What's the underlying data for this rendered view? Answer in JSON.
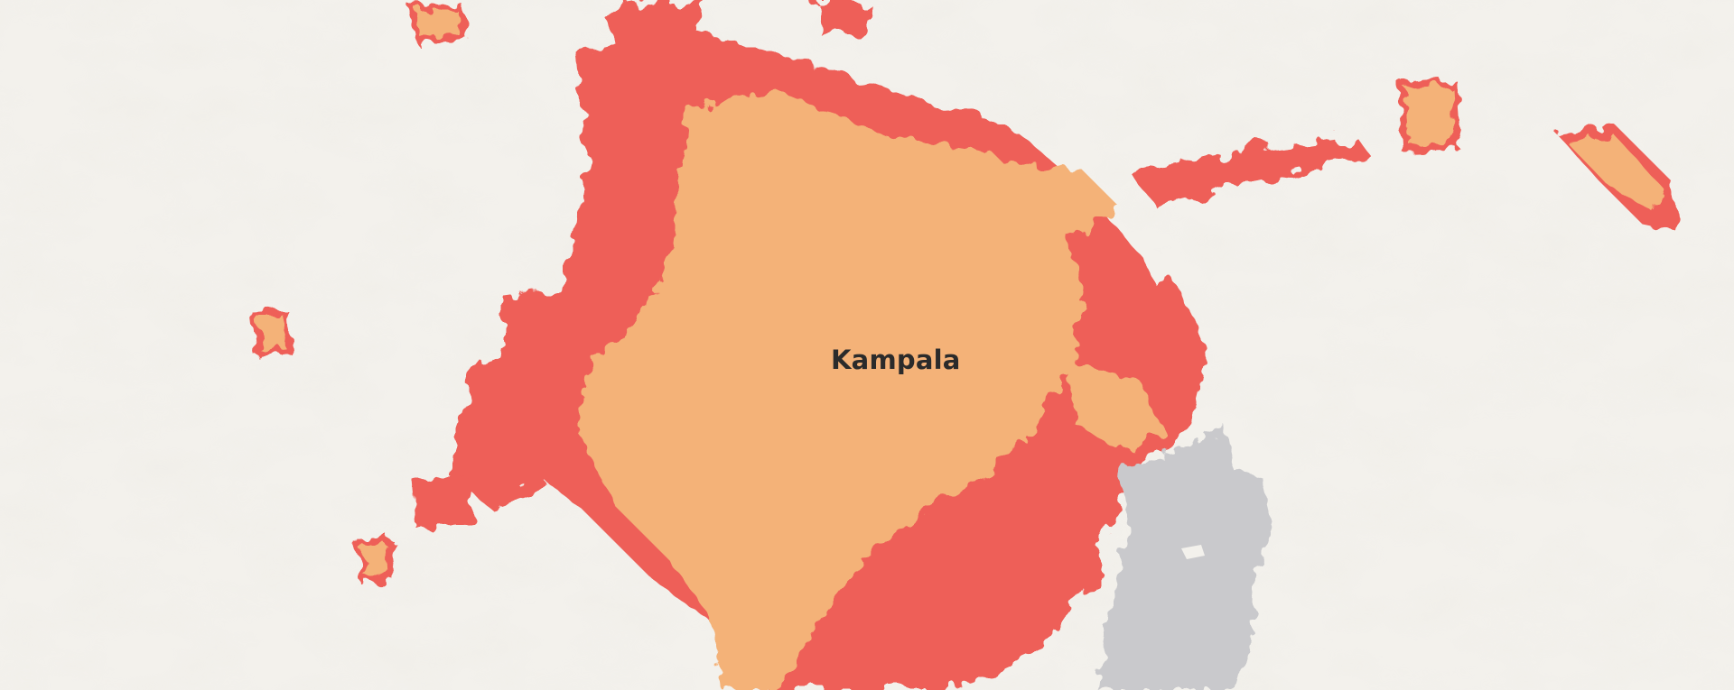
{
  "map": {
    "city_label": "Kampala",
    "colors": {
      "background": "#f3f1ec",
      "terrain_shade": "#e3dfd7",
      "urban_core": "#f4b278",
      "urban_expansion": "#ee5f59",
      "water": "#c9c9cc"
    },
    "features": [
      "hillshade-terrain",
      "urban-core-extent",
      "urban-expansion-extent",
      "lake-water"
    ]
  }
}
